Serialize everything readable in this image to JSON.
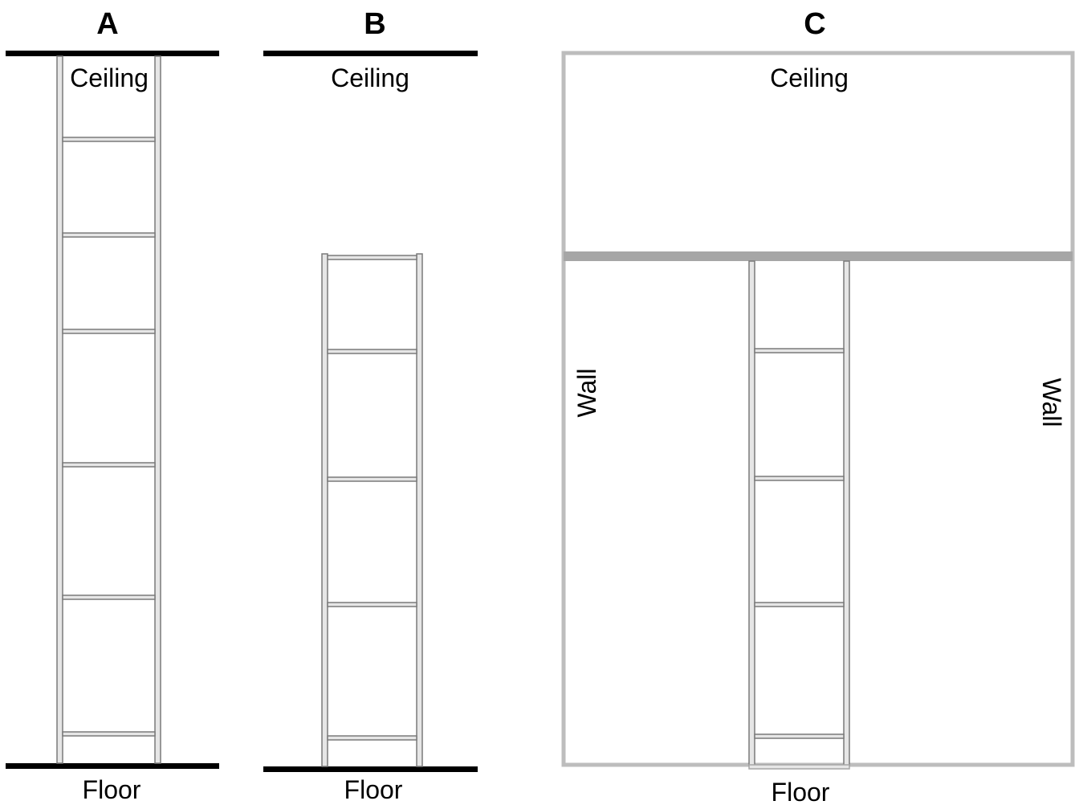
{
  "panels": {
    "a": {
      "label": "A",
      "ceiling": "Ceiling",
      "floor": "Floor",
      "rung_count": 6
    },
    "b": {
      "label": "B",
      "ceiling": "Ceiling",
      "floor": "Floor",
      "rung_count": 5
    },
    "c": {
      "label": "C",
      "ceiling": "Ceiling",
      "floor": "Floor",
      "wall_left": "Wall",
      "wall_right": "Wall",
      "rung_count": 5
    }
  },
  "colors": {
    "surface_black": "#000000",
    "room_gray": "#bdbdbd",
    "ledge_gray": "#a6a6a6",
    "ladder_outline": "#7a7a7a",
    "ladder_fill": "#e6e6e6"
  }
}
